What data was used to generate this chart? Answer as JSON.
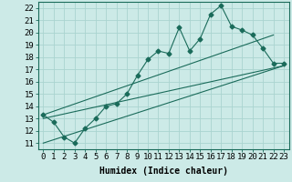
{
  "xlabel": "Humidex (Indice chaleur)",
  "background_color": "#cceae7",
  "grid_color": "#aad4d0",
  "line_color": "#1a6b5a",
  "xlim": [
    -0.5,
    23.5
  ],
  "ylim": [
    10.5,
    22.5
  ],
  "xticks": [
    0,
    1,
    2,
    3,
    4,
    5,
    6,
    7,
    8,
    9,
    10,
    11,
    12,
    13,
    14,
    15,
    16,
    17,
    18,
    19,
    20,
    21,
    22,
    23
  ],
  "yticks": [
    11,
    12,
    13,
    14,
    15,
    16,
    17,
    18,
    19,
    20,
    21,
    22
  ],
  "scatter_x": [
    0,
    1,
    2,
    3,
    4,
    5,
    6,
    7,
    8,
    9,
    10,
    11,
    12,
    13,
    14,
    15,
    16,
    17,
    18,
    19,
    20,
    21,
    22,
    23
  ],
  "scatter_y": [
    13.3,
    12.7,
    11.5,
    11.0,
    12.2,
    13.0,
    14.0,
    14.2,
    15.0,
    16.5,
    17.8,
    18.5,
    18.3,
    20.4,
    18.5,
    19.5,
    21.5,
    22.2,
    20.5,
    20.2,
    19.8,
    18.7,
    17.5,
    17.5
  ],
  "line1_x": [
    0,
    23
  ],
  "line1_y": [
    13.0,
    17.3
  ],
  "line2_x": [
    0,
    23
  ],
  "line2_y": [
    11.0,
    17.3
  ],
  "line3_x": [
    0,
    22
  ],
  "line3_y": [
    13.3,
    19.8
  ],
  "marker_size": 2.5,
  "font_size": 6.5
}
